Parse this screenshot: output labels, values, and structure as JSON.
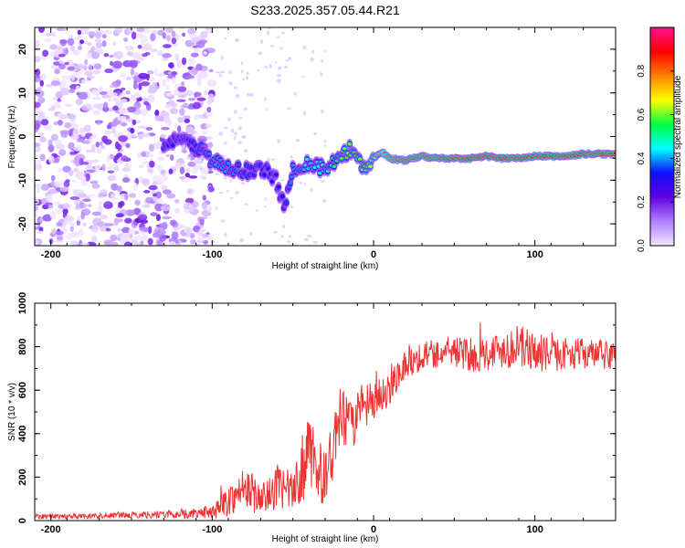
{
  "title": "S233.2025.357.05.44.R21",
  "chart_data": [
    {
      "type": "heatmap",
      "xlabel": "Height of straight line (km)",
      "ylabel": "Frequency (Hz)",
      "xlim": [
        -210,
        150
      ],
      "ylim": [
        -25,
        25
      ],
      "xticks": [
        -200,
        -100,
        0,
        100
      ],
      "xtick_labels": [
        "-200",
        "-100",
        "0",
        "100"
      ],
      "yticks": [
        -20,
        -10,
        0,
        10,
        20
      ],
      "ytick_labels": [
        "-20",
        "-10",
        "0",
        "10",
        "20"
      ],
      "colorbar": {
        "label": "Normalized spectral amplitude",
        "range": [
          0,
          1
        ],
        "ticks": [
          0.0,
          0.2,
          0.4,
          0.6,
          0.8
        ],
        "tick_labels": [
          "0.0",
          "0.2",
          "0.4",
          "0.6",
          "0.8"
        ],
        "colors": [
          "#f2e6ff",
          "#b080ff",
          "#6000e0",
          "#1010ff",
          "#00ffff",
          "#00ff40",
          "#ffff00",
          "#ff8000",
          "#ff0000",
          "#ff1090"
        ]
      },
      "noise_region_x": [
        -210,
        -100
      ],
      "signal_track": [
        {
          "x": -130,
          "f": -1.5,
          "a": 0.35
        },
        {
          "x": -120,
          "f": -1.0,
          "a": 0.3
        },
        {
          "x": -110,
          "f": -2.0,
          "a": 0.35
        },
        {
          "x": -100,
          "f": -5.5,
          "a": 0.4
        },
        {
          "x": -90,
          "f": -7.5,
          "a": 0.4
        },
        {
          "x": -80,
          "f": -8.0,
          "a": 0.35
        },
        {
          "x": -70,
          "f": -7.0,
          "a": 0.35
        },
        {
          "x": -60,
          "f": -10.0,
          "a": 0.3
        },
        {
          "x": -55,
          "f": -17.0,
          "a": 0.35
        },
        {
          "x": -50,
          "f": -7.0,
          "a": 0.4
        },
        {
          "x": -40,
          "f": -6.0,
          "a": 0.45
        },
        {
          "x": -30,
          "f": -7.5,
          "a": 0.45
        },
        {
          "x": -20,
          "f": -5.0,
          "a": 0.6
        },
        {
          "x": -15,
          "f": -3.0,
          "a": 0.6
        },
        {
          "x": -10,
          "f": -4.5,
          "a": 0.6
        },
        {
          "x": -5,
          "f": -7.5,
          "a": 0.6
        },
        {
          "x": 0,
          "f": -5.0,
          "a": 0.65
        },
        {
          "x": 5,
          "f": -3.5,
          "a": 0.7
        },
        {
          "x": 10,
          "f": -5.0,
          "a": 0.8
        },
        {
          "x": 20,
          "f": -5.5,
          "a": 0.85
        },
        {
          "x": 30,
          "f": -4.5,
          "a": 0.85
        },
        {
          "x": 40,
          "f": -5.0,
          "a": 0.85
        },
        {
          "x": 50,
          "f": -5.0,
          "a": 0.9
        },
        {
          "x": 60,
          "f": -5.0,
          "a": 0.9
        },
        {
          "x": 70,
          "f": -4.5,
          "a": 0.9
        },
        {
          "x": 80,
          "f": -5.0,
          "a": 0.9
        },
        {
          "x": 90,
          "f": -5.0,
          "a": 0.9
        },
        {
          "x": 100,
          "f": -4.5,
          "a": 0.9
        },
        {
          "x": 110,
          "f": -4.5,
          "a": 0.9
        },
        {
          "x": 120,
          "f": -4.5,
          "a": 0.9
        },
        {
          "x": 130,
          "f": -4.0,
          "a": 0.9
        },
        {
          "x": 140,
          "f": -4.0,
          "a": 0.9
        },
        {
          "x": 150,
          "f": -4.0,
          "a": 0.9
        }
      ]
    },
    {
      "type": "line",
      "xlabel": "Height of straight line (km)",
      "ylabel": "SNR (10 * v/v)",
      "xlim": [
        -210,
        150
      ],
      "ylim": [
        0,
        1000
      ],
      "xticks": [
        -200,
        -100,
        0,
        100
      ],
      "xtick_labels": [
        "-200",
        "-100",
        "0",
        "100"
      ],
      "yticks": [
        0,
        200,
        400,
        600,
        800,
        1000
      ],
      "ytick_labels": [
        "0",
        "200",
        "400",
        "600",
        "800",
        "1000"
      ],
      "line_color": "#ee3333",
      "series": [
        {
          "name": "SNR",
          "x": [
            -210,
            -190,
            -170,
            -150,
            -135,
            -120,
            -110,
            -100,
            -95,
            -90,
            -85,
            -80,
            -75,
            -70,
            -65,
            -60,
            -55,
            -50,
            -45,
            -40,
            -35,
            -30,
            -25,
            -20,
            -15,
            -10,
            -5,
            0,
            5,
            10,
            15,
            20,
            25,
            30,
            40,
            50,
            60,
            70,
            80,
            90,
            100,
            110,
            120,
            130,
            140,
            150
          ],
          "y": [
            20,
            20,
            22,
            25,
            28,
            30,
            32,
            40,
            60,
            90,
            120,
            140,
            130,
            100,
            110,
            160,
            150,
            120,
            220,
            300,
            260,
            180,
            330,
            480,
            420,
            500,
            520,
            540,
            580,
            620,
            680,
            720,
            740,
            760,
            770,
            780,
            760,
            770,
            790,
            800,
            780,
            760,
            770,
            770,
            760,
            760
          ],
          "noise": [
            12,
            12,
            12,
            14,
            18,
            20,
            22,
            30,
            50,
            70,
            80,
            90,
            90,
            80,
            80,
            100,
            100,
            90,
            140,
            180,
            160,
            120,
            150,
            150,
            130,
            120,
            110,
            100,
            90,
            90,
            80,
            70,
            70,
            70,
            70,
            70,
            80,
            80,
            90,
            100,
            90,
            80,
            70,
            70,
            70,
            70
          ]
        }
      ]
    }
  ]
}
